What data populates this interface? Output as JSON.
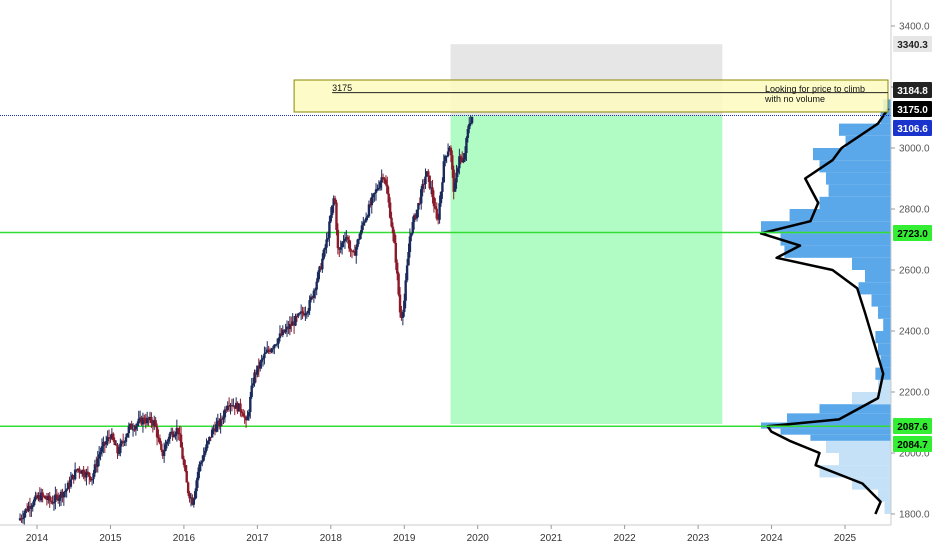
{
  "chart_data": {
    "type": "candlestick",
    "ylim": [
      1780,
      3440
    ],
    "xlim": [
      2013.75,
      2025.65
    ],
    "x_ticks": [
      2014,
      2015,
      2016,
      2017,
      2018,
      2019,
      2020,
      2021,
      2022,
      2023,
      2024,
      2025
    ],
    "y_ticks": [
      1800,
      2000,
      2200,
      2400,
      2600,
      2800,
      3000,
      3200,
      3400
    ],
    "y_tick_labels": [
      "1800.0",
      "2000.0",
      "2200.0",
      "2400.0",
      "2600.0",
      "2800.0",
      "3000.0",
      "3200.0",
      "3400.0"
    ],
    "price_path": [
      [
        2013.75,
        1780
      ],
      [
        2013.9,
        1830
      ],
      [
        2014.05,
        1860
      ],
      [
        2014.2,
        1840
      ],
      [
        2014.4,
        1880
      ],
      [
        2014.55,
        1950
      ],
      [
        2014.75,
        1920
      ],
      [
        2014.85,
        2000
      ],
      [
        2015.0,
        2060
      ],
      [
        2015.1,
        2000
      ],
      [
        2015.25,
        2080
      ],
      [
        2015.45,
        2110
      ],
      [
        2015.6,
        2100
      ],
      [
        2015.7,
        1990
      ],
      [
        2015.8,
        2060
      ],
      [
        2015.92,
        2080
      ],
      [
        2016.05,
        1880
      ],
      [
        2016.12,
        1840
      ],
      [
        2016.2,
        1950
      ],
      [
        2016.4,
        2080
      ],
      [
        2016.5,
        2100
      ],
      [
        2016.6,
        2170
      ],
      [
        2016.8,
        2140
      ],
      [
        2016.85,
        2090
      ],
      [
        2016.95,
        2250
      ],
      [
        2017.1,
        2320
      ],
      [
        2017.3,
        2380
      ],
      [
        2017.5,
        2430
      ],
      [
        2017.7,
        2480
      ],
      [
        2017.85,
        2600
      ],
      [
        2017.95,
        2700
      ],
      [
        2018.05,
        2850
      ],
      [
        2018.1,
        2650
      ],
      [
        2018.2,
        2720
      ],
      [
        2018.3,
        2640
      ],
      [
        2018.45,
        2760
      ],
      [
        2018.6,
        2850
      ],
      [
        2018.72,
        2920
      ],
      [
        2018.8,
        2800
      ],
      [
        2018.88,
        2650
      ],
      [
        2018.95,
        2440
      ],
      [
        2019.0,
        2500
      ],
      [
        2019.08,
        2720
      ],
      [
        2019.2,
        2820
      ],
      [
        2019.3,
        2920
      ],
      [
        2019.38,
        2850
      ],
      [
        2019.45,
        2750
      ],
      [
        2019.55,
        2970
      ],
      [
        2019.62,
        3010
      ],
      [
        2019.68,
        2850
      ],
      [
        2019.75,
        2980
      ],
      [
        2019.8,
        2940
      ],
      [
        2019.88,
        3080
      ],
      [
        2019.93,
        3106.6
      ]
    ],
    "horizontal_lines": [
      {
        "value": 2723.0,
        "color": "#33dd33"
      },
      {
        "value": 2087.6,
        "color": "#33dd33"
      },
      {
        "value": 3106.6,
        "color": "#2233aa",
        "style": "dotted"
      }
    ],
    "projection_box": {
      "x_start": 2019.63,
      "x_end": 2023.33,
      "y_lower": 3106.6,
      "y_upper": 3340.3,
      "lower_color": "#b1fcc5",
      "upper_color": "#e6e6e6"
    },
    "price_labels": [
      {
        "text": "3340.3",
        "value": 3340.3,
        "bg": "#e6e6e6",
        "fg": "#222222"
      },
      {
        "text": "3184.8",
        "value": 3184.8,
        "bg": "#222222",
        "fg": "#ffffff"
      },
      {
        "text": "3175.0",
        "value": 3175.0,
        "bg": "#000000",
        "fg": "#ffffff"
      },
      {
        "text": "3106.6",
        "value": 3106.6,
        "bg": "#1a33cc",
        "fg": "#ffffff"
      },
      {
        "text": "2723.0",
        "value": 2723.0,
        "bg": "#33ee33",
        "fg": "#000000"
      },
      {
        "text": "2087.6",
        "value": 2087.6,
        "bg": "#33ee33",
        "fg": "#000000"
      },
      {
        "text": "2084.7",
        "value": 2084.7,
        "bg": "#33ee33",
        "fg": "#000000"
      }
    ],
    "annotation": {
      "label": "3175",
      "note_line1": "Looking for price to climb",
      "note_line2": "with no volume",
      "y_top": 3184.8,
      "y_mid": 3175.0,
      "x_start": 2017.5,
      "bg": "#fdfcbe"
    },
    "volume_profile": [
      [
        1800,
        0.05
      ],
      [
        1840,
        0.1
      ],
      [
        1880,
        0.3
      ],
      [
        1920,
        0.55
      ],
      [
        1960,
        0.4
      ],
      [
        2000,
        0.5
      ],
      [
        2040,
        0.62
      ],
      [
        2060,
        0.85
      ],
      [
        2080,
        1.0
      ],
      [
        2100,
        0.8
      ],
      [
        2130,
        0.55
      ],
      [
        2160,
        0.3
      ],
      [
        2200,
        0.1
      ],
      [
        2240,
        0.12
      ],
      [
        2280,
        0.08
      ],
      [
        2320,
        0.1
      ],
      [
        2360,
        0.12
      ],
      [
        2400,
        0.06
      ],
      [
        2440,
        0.1
      ],
      [
        2480,
        0.15
      ],
      [
        2520,
        0.25
      ],
      [
        2560,
        0.2
      ],
      [
        2600,
        0.3
      ],
      [
        2640,
        0.82
      ],
      [
        2680,
        0.85
      ],
      [
        2720,
        1.0
      ],
      [
        2760,
        0.78
      ],
      [
        2800,
        0.55
      ],
      [
        2840,
        0.48
      ],
      [
        2880,
        0.5
      ],
      [
        2920,
        0.55
      ],
      [
        2960,
        0.6
      ],
      [
        3000,
        0.35
      ],
      [
        3040,
        0.4
      ],
      [
        3080,
        0.08
      ],
      [
        3120,
        0.06
      ]
    ],
    "colors": {
      "up": "#1a2a5a",
      "down": "#8b1a2a",
      "profile": "#5aa8ea",
      "profile_light": "#c4e1f7",
      "outline": "#000000",
      "grid": "#e0e0e0"
    }
  }
}
